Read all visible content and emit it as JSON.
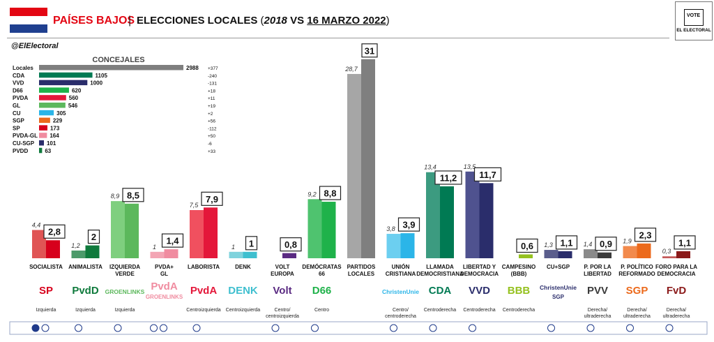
{
  "header": {
    "country": "PAÍSES BAJOS",
    "separator": "|",
    "subtitle_main": "ELECCIONES LOCALES",
    "subtitle_year_prev": "2018",
    "subtitle_vs": "VS",
    "subtitle_date": "16 MARZO 2022",
    "handle": "@ElElectoral",
    "logo_vote": "VOTE",
    "logo_name": "EL ELECTORAL",
    "flag_colors": [
      "#e30613",
      "#ffffff",
      "#1f3f8f"
    ]
  },
  "colors": {
    "prev_note": "lighter shade = 2018, darker shade = 2022",
    "eu_blue": "#1f3a8a"
  },
  "chart_data": [
    {
      "type": "bar",
      "orientation": "horizontal",
      "title": "CONCEJALES",
      "categories": [
        "Locales",
        "CDA",
        "VVD",
        "D66",
        "PVDA",
        "GL",
        "CU",
        "SGP",
        "SP",
        "PVDA-GL",
        "CU-SGP",
        "PVDD"
      ],
      "values": [
        2988,
        1105,
        1000,
        620,
        560,
        546,
        305,
        229,
        173,
        164,
        101,
        63
      ],
      "changes": [
        "+377",
        "-240",
        "-131",
        "+18",
        "+11",
        "+19",
        "+2",
        "+56",
        "-112",
        "+50",
        "-6",
        "+33"
      ],
      "colors": [
        "#7f7f7f",
        "#007a53",
        "#2a2d6b",
        "#1fb24a",
        "#e4173a",
        "#5cb85c",
        "#2bb5e8",
        "#ec6a1c",
        "#d7001c",
        "#f08ca0",
        "#2a2d6b",
        "#0f7a3c"
      ]
    },
    {
      "type": "bar",
      "series": [
        {
          "name": "2018",
          "values": [
            4.4,
            1.2,
            8.9,
            1,
            7.5,
            1,
            null,
            9.2,
            28.7,
            3.8,
            13.4,
            13.5,
            null,
            1.3,
            1.4,
            1.9,
            0.3
          ]
        },
        {
          "name": "2022",
          "values": [
            2.8,
            2,
            8.5,
            1.4,
            7.9,
            1,
            0.8,
            8.8,
            31,
            3.9,
            11.2,
            11.7,
            0.6,
            1.1,
            0.9,
            2.3,
            1.1
          ]
        }
      ],
      "prev_labels": [
        "4,4",
        "1,2",
        "8,9",
        "1",
        "7,5",
        "1",
        "",
        "9,2",
        "28,7",
        "3,8",
        "13,4",
        "13,5",
        "",
        "1,3",
        "1,4",
        "1,9",
        "0,3"
      ],
      "curr_labels": [
        "2,8",
        "2",
        "8,5",
        "1,4",
        "7,9",
        "1",
        "0,8",
        "8,8",
        "31",
        "3,9",
        "11,2",
        "11,7",
        "0,6",
        "1,1",
        "0,9",
        "2,3",
        "1,1"
      ],
      "parties": [
        {
          "label": [
            "SOCIALISTA"
          ],
          "logo": "SP",
          "ideology": [
            "Izquierda"
          ],
          "c_prev": "#e05555",
          "c_curr": "#d7001c",
          "eu": [
            "flag-icon",
            "gue-icon"
          ]
        },
        {
          "label": [
            "ANIMALISTA"
          ],
          "logo": "PvdD",
          "ideology": [
            "Izquierda"
          ],
          "c_prev": "#4c9a6a",
          "c_curr": "#0f7a3c",
          "eu": [
            "gue-icon"
          ]
        },
        {
          "label": [
            "IZQUIERDA",
            "VERDE"
          ],
          "logo": "GROENLINKS",
          "ideology": [
            "Izquierda"
          ],
          "c_prev": "#7fcf7f",
          "c_curr": "#5cb85c",
          "eu": [
            "greens-icon"
          ]
        },
        {
          "label": [
            "PVDA+",
            "GL"
          ],
          "logo": "PvdA",
          "logo2": "GROENLINKS",
          "ideology": [],
          "c_prev": "#f3a5b4",
          "c_curr": "#f08ca0",
          "eu": [
            "greens-icon",
            "sd-icon"
          ]
        },
        {
          "label": [
            "LABORISTA"
          ],
          "logo": "PvdA",
          "ideology": [
            "Centroizquierda"
          ],
          "c_prev": "#f0505f",
          "c_curr": "#e4173a",
          "eu": [
            "sd-icon"
          ]
        },
        {
          "label": [
            "DENK"
          ],
          "logo": "DENK",
          "ideology": [
            "Centroizquierda"
          ],
          "c_prev": "#7fd3dd",
          "c_curr": "#3fbfcf",
          "eu": []
        },
        {
          "label": [
            "VOLT",
            "EUROPA"
          ],
          "logo": "Volt",
          "ideology": [
            "Centro/",
            "centroizquierda"
          ],
          "c_prev": "#8c6bb1",
          "c_curr": "#5a2a82",
          "eu": [
            "greens-icon"
          ]
        },
        {
          "label": [
            "DEMÓCRATAS",
            "66"
          ],
          "logo": "D66",
          "ideology": [
            "Centro"
          ],
          "c_prev": "#4fc36f",
          "c_curr": "#1fb24a",
          "eu": [
            "renew-icon"
          ]
        },
        {
          "label": [
            "PARTIDOS",
            "LOCALES"
          ],
          "logo": "",
          "ideology": [],
          "c_prev": "#a6a6a6",
          "c_curr": "#7f7f7f",
          "eu": []
        },
        {
          "label": [
            "UNIÓN",
            "CRISTIANA"
          ],
          "logo": "ChristenUnie",
          "ideology": [
            "Centro/",
            "centroderecha"
          ],
          "c_prev": "#6ccff0",
          "c_curr": "#2bb5e8",
          "eu": [
            "epp-icon"
          ]
        },
        {
          "label": [
            "LLAMADA",
            "DEMOCRISTIANA"
          ],
          "logo": "CDA",
          "ideology": [
            "Centroderecha"
          ],
          "c_prev": "#3c9b80",
          "c_curr": "#007a53",
          "eu": [
            "epp-icon"
          ]
        },
        {
          "label": [
            "LIBERTAD Y",
            "DEMOCRACIA"
          ],
          "logo": "VVD",
          "ideology": [
            "Centroderecha"
          ],
          "c_prev": "#4f528f",
          "c_curr": "#2a2d6b",
          "eu": [
            "renew-icon"
          ]
        },
        {
          "label": [
            "CAMPESINO",
            "(BBB)"
          ],
          "logo": "BBB",
          "ideology": [
            "Centroderecha"
          ],
          "c_prev": "#b5dd5a",
          "c_curr": "#95c11f",
          "eu": []
        },
        {
          "label": [
            "CU+SGP"
          ],
          "logo": "ChristenUnie",
          "logo2": "SGP",
          "ideology": [],
          "c_prev": "#5a5d8c",
          "c_curr": "#2a2d6b",
          "eu": [
            "epp-icon"
          ]
        },
        {
          "label": [
            "P. POR LA",
            "LIBERTAD"
          ],
          "logo": "PVV",
          "ideology": [
            "Derecha/",
            "ultraderecha"
          ],
          "c_prev": "#8a8a8a",
          "c_curr": "#3a3a3a",
          "eu": [
            "id-icon"
          ]
        },
        {
          "label": [
            "P. POLÍTICO",
            "REFORMADO"
          ],
          "logo": "SGP",
          "ideology": [
            "Derecha/",
            "ultraderecha"
          ],
          "c_prev": "#f28a4c",
          "c_curr": "#ec6a1c",
          "eu": [
            "ecr-icon"
          ]
        },
        {
          "label": [
            "FORO PARA LA",
            "DEMOCRACIA"
          ],
          "logo": "FvD",
          "ideology": [
            "Derecha/",
            "ultraderecha"
          ],
          "c_prev": "#c45a5a",
          "c_curr": "#8b1a1a",
          "eu": [
            "id-icon"
          ]
        }
      ]
    }
  ]
}
